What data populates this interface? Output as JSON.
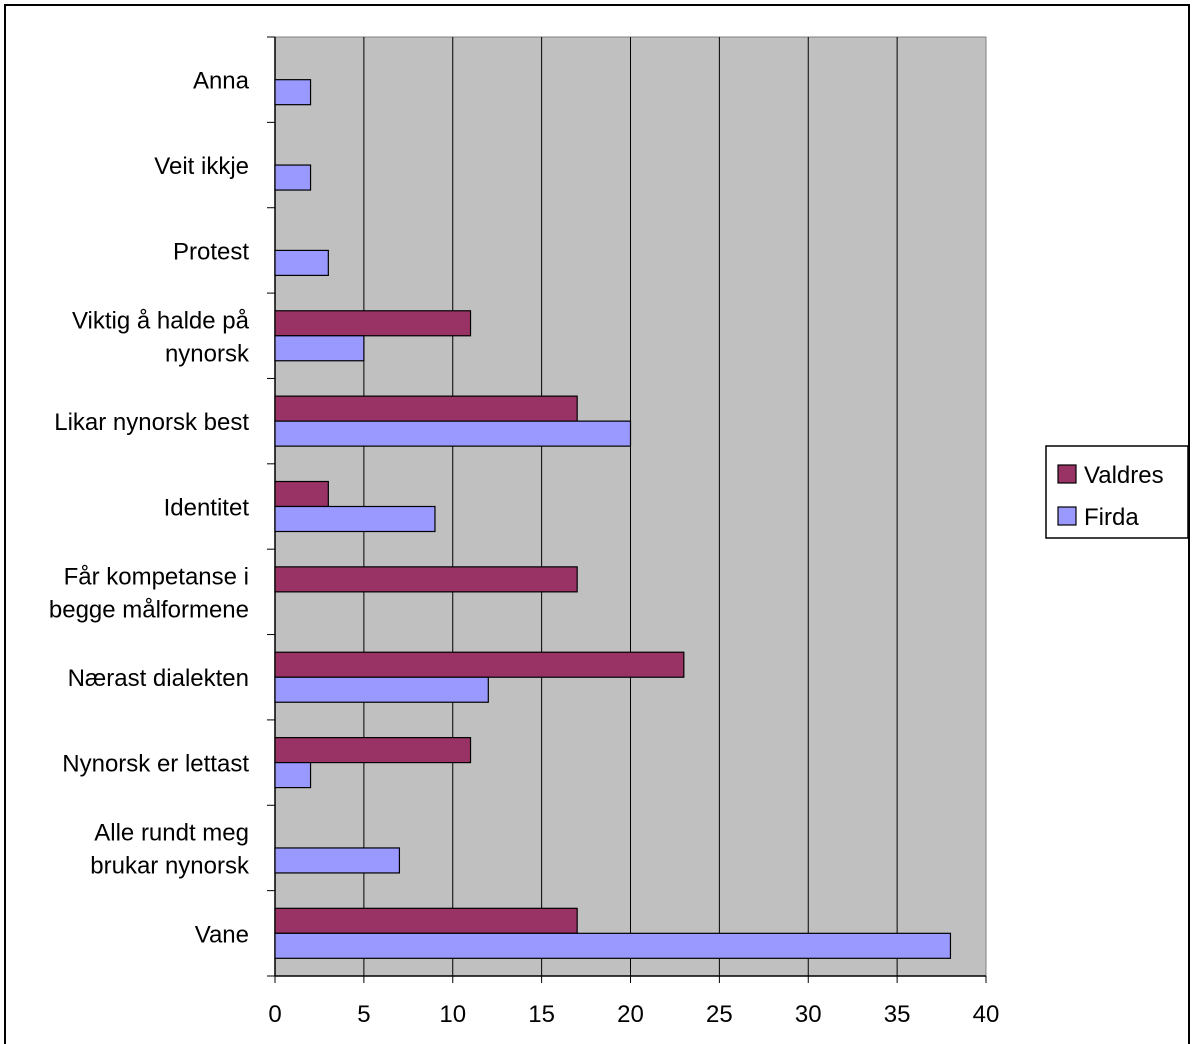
{
  "chart_data": {
    "type": "bar",
    "orientation": "horizontal",
    "title": "",
    "xlabel": "",
    "ylabel": "",
    "xlim": [
      0,
      40
    ],
    "x_ticks": [
      0,
      5,
      10,
      15,
      20,
      25,
      30,
      35,
      40
    ],
    "grid": "vertical",
    "legend_position": "right",
    "categories": [
      "Vane",
      "Alle rundt meg brukar nynorsk",
      "Nynorsk er lettast",
      "Nærast dialekten",
      "Får kompetanse i begge målformene",
      "Identitet",
      "Likar nynorsk best",
      "Viktig å halde på nynorsk",
      "Protest",
      "Veit ikkje",
      "Anna"
    ],
    "category_lines": [
      [
        "Vane"
      ],
      [
        "Alle rundt meg",
        "brukar nynorsk"
      ],
      [
        "Nynorsk er lettast"
      ],
      [
        "Nærast dialekten"
      ],
      [
        "Får kompetanse i",
        "begge målformene"
      ],
      [
        "Identitet"
      ],
      [
        "Likar nynorsk best"
      ],
      [
        "Viktig å halde på",
        "nynorsk"
      ],
      [
        "Protest"
      ],
      [
        "Veit ikkje"
      ],
      [
        "Anna"
      ]
    ],
    "series": [
      {
        "name": "Valdres",
        "color": "#993366",
        "values": [
          17,
          0,
          11,
          23,
          17,
          3,
          17,
          11,
          0,
          0,
          0
        ]
      },
      {
        "name": "Firda",
        "color": "#9999FF",
        "values": [
          38,
          7,
          2,
          12,
          0,
          9,
          20,
          5,
          3,
          2,
          2
        ]
      }
    ],
    "plot_background": "#C0C0C0"
  }
}
